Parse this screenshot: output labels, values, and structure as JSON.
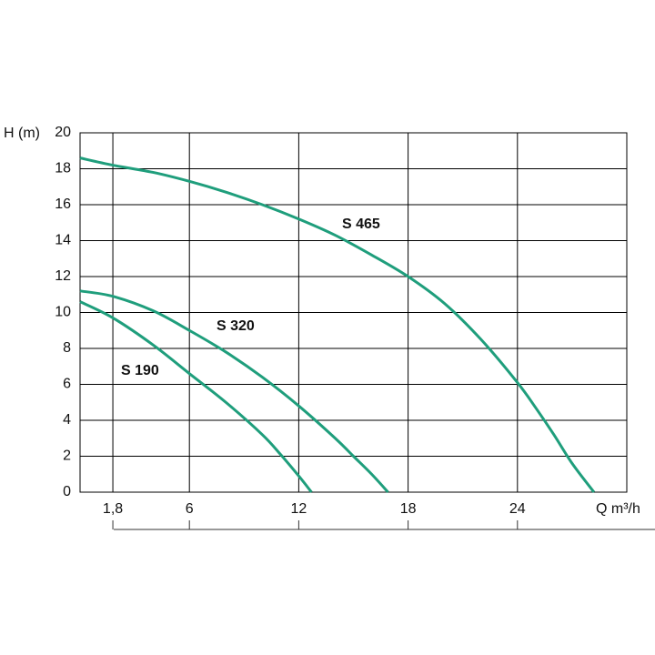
{
  "chart_data": {
    "type": "line",
    "y_label": "H (m)",
    "x_label": "Q m³/h",
    "xlim": [
      0,
      30
    ],
    "ylim": [
      0,
      20
    ],
    "xticks": [
      {
        "value": 1.8,
        "label": "1,8"
      },
      6,
      12,
      18,
      24
    ],
    "yticks": [
      0,
      2,
      4,
      6,
      8,
      10,
      12,
      14,
      16,
      18,
      20
    ],
    "grid": true,
    "series": [
      {
        "name": "S 465",
        "color": "#1f9e7c",
        "x": [
          0,
          1.8,
          4,
          6,
          8,
          10,
          12,
          14,
          16,
          18,
          20,
          22,
          24,
          25,
          26,
          27,
          28.2
        ],
        "values": [
          18.6,
          18.2,
          17.8,
          17.3,
          16.7,
          16.0,
          15.2,
          14.3,
          13.2,
          12.0,
          10.5,
          8.5,
          6.1,
          4.7,
          3.2,
          1.6,
          0
        ]
      },
      {
        "name": "S 320",
        "color": "#1f9e7c",
        "x": [
          0,
          1.8,
          4,
          6,
          8,
          10,
          12,
          14,
          15,
          16,
          16.9
        ],
        "values": [
          11.2,
          10.9,
          10.1,
          9.0,
          7.8,
          6.4,
          4.8,
          3.0,
          2.0,
          1.0,
          0
        ]
      },
      {
        "name": "S 190",
        "color": "#1f9e7c",
        "x": [
          0,
          1.8,
          4,
          6,
          8,
          10,
          11,
          12,
          12.7
        ],
        "values": [
          10.6,
          9.7,
          8.2,
          6.6,
          5.0,
          3.2,
          2.1,
          0.9,
          0
        ]
      }
    ]
  }
}
